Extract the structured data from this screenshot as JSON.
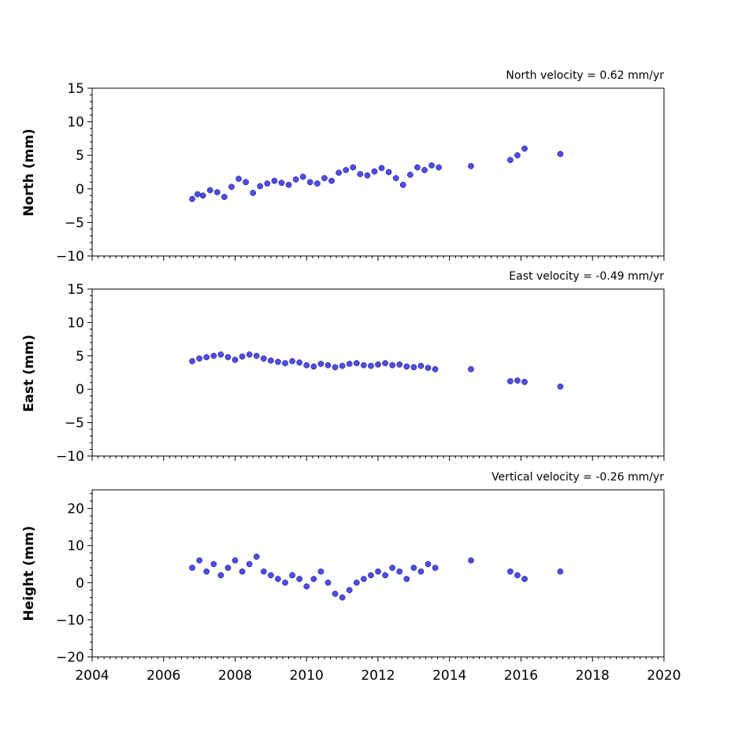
{
  "chart_data": [
    {
      "type": "scatter",
      "title": "North velocity = 0.62 mm/yr",
      "xlabel": "",
      "ylabel": "North (mm)",
      "xlim": [
        2004,
        2020
      ],
      "ylim": [
        -10,
        15
      ],
      "x_ticks": [
        2004,
        2006,
        2008,
        2010,
        2012,
        2014,
        2016,
        2018,
        2020
      ],
      "y_ticks": [
        -10,
        -5,
        0,
        5,
        10,
        15
      ],
      "grid": false,
      "color": "#4d4dff",
      "x": [
        2006.8,
        2006.95,
        2007.1,
        2007.3,
        2007.5,
        2007.7,
        2007.9,
        2008.1,
        2008.3,
        2008.5,
        2008.7,
        2008.9,
        2009.1,
        2009.3,
        2009.5,
        2009.7,
        2009.9,
        2010.1,
        2010.3,
        2010.5,
        2010.7,
        2010.9,
        2011.1,
        2011.3,
        2011.5,
        2011.7,
        2011.9,
        2012.1,
        2012.3,
        2012.5,
        2012.7,
        2012.9,
        2013.1,
        2013.3,
        2013.5,
        2013.7,
        2014.6,
        2015.7,
        2015.9,
        2016.1,
        2017.1
      ],
      "y": [
        -1.5,
        -0.8,
        -1.0,
        -0.2,
        -0.5,
        -1.2,
        0.3,
        1.5,
        1.0,
        -0.6,
        0.4,
        0.8,
        1.2,
        0.9,
        0.6,
        1.4,
        1.8,
        1.0,
        0.8,
        1.6,
        1.2,
        2.4,
        2.8,
        3.2,
        2.2,
        2.0,
        2.6,
        3.1,
        2.5,
        1.6,
        0.6,
        2.1,
        3.2,
        2.8,
        3.5,
        3.2,
        3.4,
        4.3,
        5.0,
        6.0,
        5.2
      ],
      "points_hint": 2600
    },
    {
      "type": "scatter",
      "title": "East velocity = -0.49 mm/yr",
      "xlabel": "",
      "ylabel": "East (mm)",
      "xlim": [
        2004,
        2020
      ],
      "ylim": [
        -10,
        15
      ],
      "x_ticks": [
        2004,
        2006,
        2008,
        2010,
        2012,
        2014,
        2016,
        2018,
        2020
      ],
      "y_ticks": [
        -10,
        -5,
        0,
        5,
        10,
        15
      ],
      "grid": false,
      "color": "#4d4dff",
      "x": [
        2006.8,
        2007.0,
        2007.2,
        2007.4,
        2007.6,
        2007.8,
        2008.0,
        2008.2,
        2008.4,
        2008.6,
        2008.8,
        2009.0,
        2009.2,
        2009.4,
        2009.6,
        2009.8,
        2010.0,
        2010.2,
        2010.4,
        2010.6,
        2010.8,
        2011.0,
        2011.2,
        2011.4,
        2011.6,
        2011.8,
        2012.0,
        2012.2,
        2012.4,
        2012.6,
        2012.8,
        2013.0,
        2013.2,
        2013.4,
        2013.6,
        2014.6,
        2015.7,
        2015.9,
        2016.1,
        2017.1
      ],
      "y": [
        4.2,
        4.6,
        4.8,
        5.0,
        5.2,
        4.8,
        4.4,
        4.9,
        5.2,
        5.0,
        4.6,
        4.3,
        4.1,
        3.9,
        4.2,
        4.0,
        3.6,
        3.4,
        3.8,
        3.6,
        3.3,
        3.5,
        3.8,
        3.9,
        3.6,
        3.5,
        3.7,
        3.9,
        3.6,
        3.7,
        3.4,
        3.3,
        3.5,
        3.2,
        3.0,
        3.0,
        1.2,
        1.3,
        1.1,
        0.4
      ],
      "points_hint": 2600
    },
    {
      "type": "scatter",
      "title": "Vertical velocity = -0.26 mm/yr",
      "xlabel": "",
      "ylabel": "Height (mm)",
      "xlim": [
        2004,
        2020
      ],
      "ylim": [
        -20,
        25
      ],
      "x_ticks": [
        2004,
        2006,
        2008,
        2010,
        2012,
        2014,
        2016,
        2018,
        2020
      ],
      "y_ticks": [
        -20,
        -10,
        0,
        10,
        20
      ],
      "grid": false,
      "color": "#4d4dff",
      "x": [
        2006.8,
        2007.0,
        2007.2,
        2007.4,
        2007.6,
        2007.8,
        2008.0,
        2008.2,
        2008.4,
        2008.6,
        2008.8,
        2009.0,
        2009.2,
        2009.4,
        2009.6,
        2009.8,
        2010.0,
        2010.2,
        2010.4,
        2010.6,
        2010.8,
        2011.0,
        2011.2,
        2011.4,
        2011.6,
        2011.8,
        2012.0,
        2012.2,
        2012.4,
        2012.6,
        2012.8,
        2013.0,
        2013.2,
        2013.4,
        2013.6,
        2014.6,
        2015.7,
        2015.9,
        2016.1,
        2017.1
      ],
      "y": [
        4.0,
        6.0,
        3.0,
        5.0,
        2.0,
        4.0,
        6.0,
        3.0,
        5.0,
        7.0,
        3.0,
        2.0,
        1.0,
        0.0,
        2.0,
        1.0,
        -1.0,
        1.0,
        3.0,
        0.0,
        -3.0,
        -4.0,
        -2.0,
        0.0,
        1.0,
        2.0,
        3.0,
        2.0,
        4.0,
        3.0,
        1.0,
        4.0,
        3.0,
        5.0,
        4.0,
        6.0,
        3.0,
        2.0,
        1.0,
        3.0
      ],
      "points_hint": 2600
    }
  ]
}
